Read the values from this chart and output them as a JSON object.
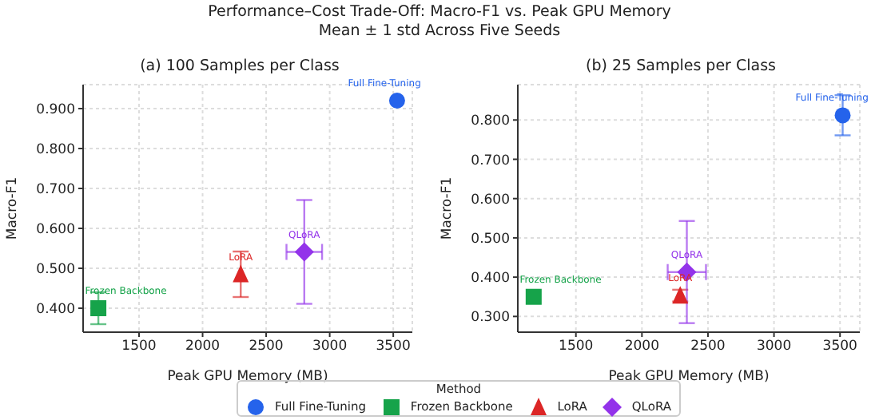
{
  "chart_data": [
    {
      "type": "scatter",
      "title": "(a) 100 Samples per Class",
      "xlabel": "Peak GPU Memory (MB)",
      "ylabel": "Macro-F1",
      "legend": "bottom",
      "legend_title": "Method",
      "grid": true,
      "annotations": [
        "Performance–Cost Trade-Off: Macro-F1 vs. Peak GPU Memory",
        "Mean ± 1 std Across Five Seeds"
      ],
      "xlim": [
        1060,
        3650
      ],
      "xticks": [
        1500,
        2000,
        2500,
        3000,
        3500
      ],
      "ylim": [
        0.34,
        0.96
      ],
      "yticks": [
        {
          "value": 0.4,
          "label": "0.400"
        },
        {
          "value": 0.5,
          "label": "0.500"
        },
        {
          "value": 0.6,
          "label": "0.600"
        },
        {
          "value": 0.7,
          "label": "0.700"
        },
        {
          "value": 0.8,
          "label": "0.800"
        },
        {
          "value": 0.9,
          "label": "0.900"
        }
      ],
      "series": [
        {
          "name": "Full Fine-Tuning",
          "color": "#2563eb",
          "marker": "circle",
          "x": [
            3530
          ],
          "values": [
            0.92
          ]
        },
        {
          "name": "Frozen Backbone",
          "color": "#16a34a",
          "marker": "square",
          "x": [
            1180
          ],
          "values": [
            0.4
          ],
          "errors": [
            0.04
          ]
        },
        {
          "name": "LoRA",
          "color": "#dc2626",
          "marker": "triangle",
          "x": [
            2300
          ],
          "values": [
            0.485
          ],
          "errors": [
            0.057
          ]
        },
        {
          "name": "QLoRA",
          "color": "#9333ea",
          "marker": "diamond",
          "x": [
            2800
          ],
          "values": [
            0.541
          ],
          "errors": [
            0.13
          ],
          "xerrors": [
            140
          ]
        }
      ]
    },
    {
      "type": "scatter",
      "title": "(b) 25 Samples per Class",
      "xlabel": "Peak GPU Memory (MB)",
      "ylabel": "Macro-F1",
      "grid": true,
      "xlim": [
        1060,
        3650
      ],
      "xticks": [
        1500,
        2000,
        2500,
        3000,
        3500
      ],
      "ylim": [
        0.26,
        0.89
      ],
      "yticks": [
        {
          "value": 0.3,
          "label": "0.300"
        },
        {
          "value": 0.4,
          "label": "0.400"
        },
        {
          "value": 0.5,
          "label": "0.500"
        },
        {
          "value": 0.6,
          "label": "0.600"
        },
        {
          "value": 0.7,
          "label": "0.700"
        },
        {
          "value": 0.8,
          "label": "0.800"
        }
      ],
      "series": [
        {
          "name": "Full Fine-Tuning",
          "color": "#2563eb",
          "marker": "circle",
          "x": [
            3520
          ],
          "values": [
            0.812
          ],
          "errors": [
            0.051
          ]
        },
        {
          "name": "Frozen Backbone",
          "color": "#16a34a",
          "marker": "square",
          "x": [
            1180
          ],
          "values": [
            0.35
          ]
        },
        {
          "name": "LoRA",
          "color": "#dc2626",
          "marker": "triangle",
          "x": [
            2290
          ],
          "values": [
            0.353
          ],
          "errors": [
            0.015
          ]
        },
        {
          "name": "QLoRA",
          "color": "#9333ea",
          "marker": "diamond",
          "x": [
            2340
          ],
          "values": [
            0.413
          ],
          "errors": [
            0.13
          ],
          "xerrors": [
            145
          ]
        }
      ]
    }
  ]
}
